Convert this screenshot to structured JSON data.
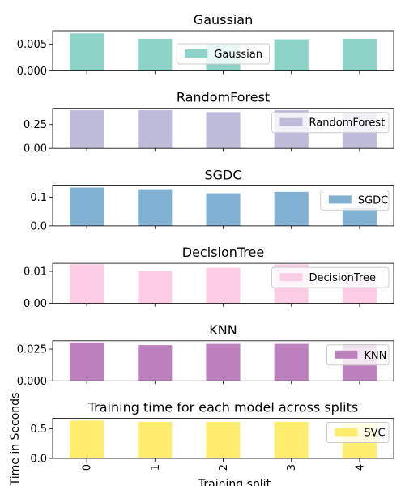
{
  "chart_data": [
    {
      "type": "bar",
      "title": "Gaussian",
      "legend": "Gaussian",
      "legend_position": "upper center",
      "color": "#8dd3c7",
      "categories": [
        "0",
        "1",
        "2",
        "3",
        "4"
      ],
      "values": [
        0.007,
        0.006,
        0.0051,
        0.0059,
        0.006
      ],
      "ylim": [
        0,
        0.0075
      ],
      "yticks": [
        0.0,
        0.005
      ],
      "ytick_labels": [
        "0.000",
        "0.005"
      ]
    },
    {
      "type": "bar",
      "title": "RandomForest",
      "legend": "RandomForest",
      "legend_position": "upper right",
      "color": "#bebada",
      "categories": [
        "0",
        "1",
        "2",
        "3",
        "4"
      ],
      "values": [
        0.4,
        0.4,
        0.38,
        0.4,
        0.37
      ],
      "ylim": [
        0,
        0.42
      ],
      "yticks": [
        0.0,
        0.25
      ],
      "ytick_labels": [
        "0.00",
        "0.25"
      ]
    },
    {
      "type": "bar",
      "title": "SGDC",
      "legend": "SGDC",
      "legend_position": "upper right",
      "color": "#80b1d3",
      "categories": [
        "0",
        "1",
        "2",
        "3",
        "4"
      ],
      "values": [
        0.134,
        0.128,
        0.114,
        0.119,
        0.063
      ],
      "ylim": [
        0,
        0.14
      ],
      "yticks": [
        0.0,
        0.1
      ],
      "ytick_labels": [
        "0.0",
        "0.1"
      ]
    },
    {
      "type": "bar",
      "title": "DecisionTree",
      "legend": "DecisionTree",
      "legend_position": "upper right",
      "color": "#fccde5",
      "categories": [
        "0",
        "1",
        "2",
        "3",
        "4"
      ],
      "values": [
        0.0122,
        0.0101,
        0.0111,
        0.0122,
        0.0081
      ],
      "ylim": [
        0,
        0.0125
      ],
      "yticks": [
        0.0,
        0.01
      ],
      "ytick_labels": [
        "0.00",
        "0.01"
      ]
    },
    {
      "type": "bar",
      "title": "KNN",
      "legend": "KNN",
      "legend_position": "upper right",
      "color": "#bc80bd",
      "categories": [
        "0",
        "1",
        "2",
        "3",
        "4"
      ],
      "values": [
        0.0302,
        0.0281,
        0.0291,
        0.0291,
        0.0287
      ],
      "ylim": [
        0,
        0.0315
      ],
      "yticks": [
        0.0,
        0.025
      ],
      "ytick_labels": [
        "0.000",
        "0.025"
      ]
    },
    {
      "type": "bar",
      "title": "Training time for each model across splits",
      "legend": "SVC",
      "legend_position": "upper right",
      "color": "#ffed6f",
      "categories": [
        "0",
        "1",
        "2",
        "3",
        "4"
      ],
      "values": [
        0.64,
        0.62,
        0.62,
        0.62,
        0.6
      ],
      "ylim": [
        0,
        0.68
      ],
      "yticks": [
        0.0,
        0.5
      ],
      "ytick_labels": [
        "0.0",
        "0.5"
      ]
    }
  ],
  "xlabel": "Training split",
  "ylabel": "Time in Seconds"
}
